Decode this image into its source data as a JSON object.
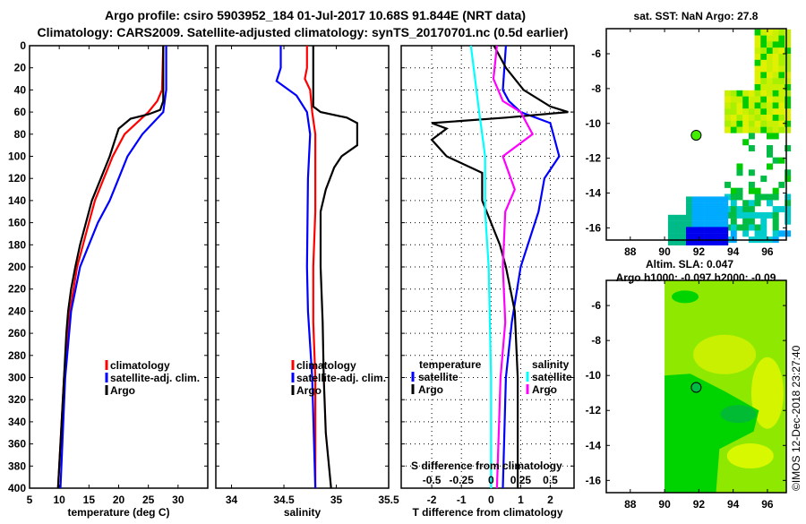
{
  "title_line1": "Argo profile: csiro 5903952_184 01-Jul-2017 10.68S 91.844E (NRT data)",
  "title_line2": "Climatology: CARS2009. Satellite-adjusted climatology: synTS_20170701.nc (0.5d earlier)",
  "copyright": "©IMOS 12-Dec-2018 23:27:40",
  "colors": {
    "argo": "#000000",
    "clim": "#ff0000",
    "sat": "#0000ff",
    "s_sat": "#00ffff",
    "s_argo": "#ff00ff"
  },
  "chart_data": [
    {
      "type": "line",
      "xlabel": "temperature (deg C)",
      "ylabel": "",
      "xlim": [
        5,
        35
      ],
      "ylim": [
        400,
        0
      ],
      "xticks": [
        "5",
        "10",
        "15",
        "20",
        "25",
        "30"
      ],
      "yticks": [
        "0",
        "20",
        "40",
        "60",
        "80",
        "100",
        "120",
        "140",
        "160",
        "180",
        "200",
        "220",
        "240",
        "260",
        "280",
        "300",
        "320",
        "340",
        "360",
        "380",
        "400"
      ],
      "legend": [
        "climatology",
        "satellite-adj. clim.",
        "Argo"
      ],
      "series": [
        {
          "name": "climatology",
          "color": "#ff0000",
          "depth": [
            0,
            40,
            50,
            60,
            80,
            100,
            120,
            140,
            160,
            180,
            200,
            240,
            300,
            400
          ],
          "values": [
            27.5,
            27.3,
            26.5,
            25,
            21,
            19,
            17.5,
            16,
            15,
            14,
            13,
            11.8,
            10.8,
            9.8
          ]
        },
        {
          "name": "satellite-adj. clim.",
          "color": "#0000ff",
          "depth": [
            0,
            40,
            60,
            80,
            100,
            120,
            140,
            160,
            180,
            200,
            240,
            300,
            400
          ],
          "values": [
            28,
            28,
            27.5,
            24,
            21.5,
            20,
            18.5,
            16.5,
            15,
            13.5,
            12,
            11,
            10.2
          ]
        },
        {
          "name": "Argo",
          "color": "#000000",
          "depth": [
            0,
            50,
            58,
            62,
            66,
            75,
            100,
            120,
            140,
            160,
            180,
            200,
            220,
            240,
            260,
            300,
            350,
            400
          ],
          "values": [
            27.5,
            27.5,
            27,
            25,
            22,
            20,
            18.5,
            17,
            15.5,
            14.5,
            13.5,
            12.7,
            12,
            11.5,
            11.2,
            10.8,
            10.3,
            9.8
          ]
        }
      ]
    },
    {
      "type": "line",
      "xlabel": "salinity",
      "xlim": [
        33.85,
        35.5
      ],
      "ylim": [
        400,
        0
      ],
      "xticks": [
        "34",
        "34.5",
        "35",
        "35.5"
      ],
      "legend": [
        "climatology",
        "satellite-adj. clim.",
        "Argo"
      ],
      "series": [
        {
          "name": "climatology",
          "color": "#ff0000",
          "depth": [
            0,
            20,
            30,
            40,
            60,
            80,
            100,
            150,
            200,
            250,
            300,
            400
          ],
          "values": [
            34.72,
            34.72,
            34.7,
            34.75,
            34.77,
            34.8,
            34.8,
            34.8,
            34.78,
            34.78,
            34.8,
            34.8
          ]
        },
        {
          "name": "satellite-adj. clim.",
          "color": "#0000ff",
          "depth": [
            0,
            20,
            32,
            45,
            60,
            80,
            120,
            200,
            240,
            300,
            400
          ],
          "values": [
            34.47,
            34.47,
            34.43,
            34.62,
            34.72,
            34.75,
            34.73,
            34.72,
            34.73,
            34.77,
            34.8
          ]
        },
        {
          "name": "Argo",
          "color": "#000000",
          "depth": [
            0,
            55,
            60,
            65,
            70,
            80,
            90,
            100,
            110,
            130,
            150,
            200,
            250,
            300,
            350,
            400
          ],
          "values": [
            34.78,
            34.78,
            34.85,
            35.1,
            35.2,
            35.2,
            35.2,
            35.05,
            34.98,
            34.9,
            34.85,
            34.85,
            34.87,
            34.88,
            34.9,
            34.95
          ]
        }
      ]
    },
    {
      "type": "line",
      "xlabel": "T difference from climatology",
      "x2label": "S difference from climatology",
      "xlim": [
        -3.03,
        2.8
      ],
      "ylim": [
        400,
        0
      ],
      "xticks": [
        "-2",
        "-1",
        "0",
        "1",
        "2"
      ],
      "x2ticks": [
        "-0.5",
        "-0.25",
        "0",
        "0.25",
        "0.5"
      ],
      "legend_temperature_title": "temperature",
      "legend_salinity_title": "salinity",
      "legend_temperature": [
        "satellite",
        "Argo"
      ],
      "legend_salinity": [
        "satellite",
        "Argo"
      ],
      "series": [
        {
          "name": "T satellite",
          "color": "#0000ff",
          "units": "T",
          "depth": [
            0,
            40,
            50,
            60,
            70,
            100,
            120,
            150,
            200,
            250,
            300,
            400
          ],
          "values": [
            0.5,
            0.4,
            0.6,
            1.0,
            2.0,
            2.3,
            1.8,
            1.6,
            1.0,
            0.7,
            0.5,
            0.4
          ]
        },
        {
          "name": "T Argo",
          "color": "#000000",
          "units": "T",
          "depth": [
            0,
            20,
            40,
            55,
            60,
            65,
            70,
            75,
            85,
            100,
            115,
            140,
            180,
            200,
            240,
            300,
            400
          ],
          "values": [
            0.1,
            0.5,
            1.1,
            2.0,
            2.6,
            0.5,
            -2,
            -1.5,
            -2,
            -1.5,
            -0.3,
            -0.3,
            0.3,
            0.5,
            0.8,
            0.9,
            0.9
          ]
        },
        {
          "name": "S satellite",
          "color": "#00ffff",
          "units": "S",
          "depth": [
            0,
            60,
            100,
            150,
            200,
            300,
            400
          ],
          "values": [
            -0.17,
            -0.1,
            -0.05,
            -0.05,
            -0.02,
            0,
            0
          ]
        },
        {
          "name": "S Argo",
          "color": "#ff00ff",
          "units": "S",
          "depth": [
            0,
            30,
            50,
            60,
            70,
            80,
            100,
            130,
            150,
            200,
            250,
            300,
            400
          ],
          "values": [
            0.05,
            0.02,
            0.1,
            0.25,
            0.3,
            0.35,
            0.1,
            0.2,
            0.12,
            0.1,
            0.12,
            0.08,
            0.05
          ]
        }
      ]
    }
  ],
  "maps": [
    {
      "title": "sat. SST: NaN Argo: 27.8",
      "lon_ticks": [
        "88",
        "90",
        "92",
        "94",
        "96"
      ],
      "lat_ticks": [
        "-6",
        "-8",
        "-10",
        "-12",
        "-14",
        "-16"
      ],
      "argo_lon": 91.844,
      "argo_lat": -10.68
    },
    {
      "title_line1": "Altim. SLA: 0.047",
      "title_line2": "Argo h1000: -0.097 h2000: -0.09",
      "lon_ticks": [
        "88",
        "90",
        "92",
        "94",
        "96"
      ],
      "lat_ticks": [
        "-6",
        "-8",
        "-10",
        "-12",
        "-14",
        "-16"
      ],
      "argo_lon": 91.844,
      "argo_lat": -10.68
    }
  ]
}
